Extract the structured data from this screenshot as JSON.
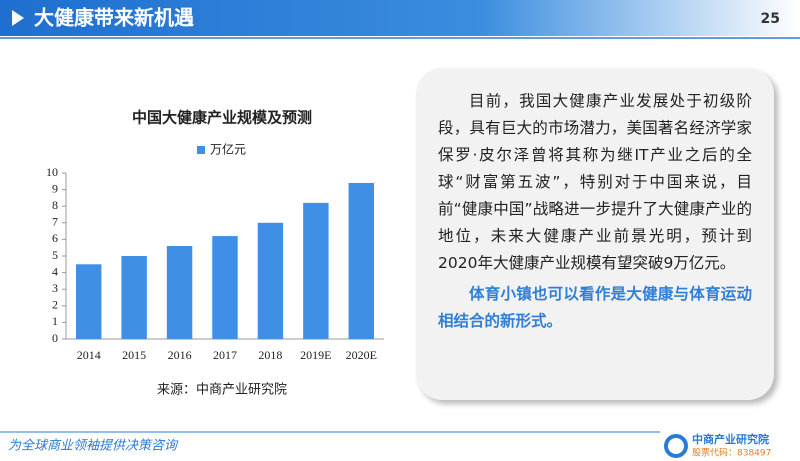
{
  "header": {
    "title": "大健康带来新机遇",
    "page": 25
  },
  "chart_data": {
    "type": "bar",
    "title": "中国大健康产业规模及预测",
    "categories": [
      "2014",
      "2015",
      "2016",
      "2017",
      "2018",
      "2019E",
      "2020E"
    ],
    "series": [
      {
        "name": "万亿元",
        "color": "#3f8fe6",
        "values": [
          4.5,
          5.0,
          5.6,
          6.2,
          7.0,
          8.2,
          9.4
        ]
      }
    ],
    "ylim": [
      0,
      10
    ],
    "yticks": [
      0,
      1,
      2,
      3,
      4,
      5,
      6,
      7,
      8,
      9,
      10
    ],
    "grid": false,
    "legend": "top"
  },
  "source": "来源：中商产业研究院",
  "panel": {
    "paragraphs": [
      "目前，我国大健康产业发展处于初级阶段，具有巨大的市场潜力，美国著名经济学家保罗·皮尔泽曾将其称为继IT产业之后的全球“财富第五波”，特别对于中国来说，目前“健康中国”战略进一步提升了大健康产业的地位，未来大健康产业前景光明，预计到2020年大健康产业规模有望突破9万亿元。",
      "体育小镇也可以看作是大健康与体育运动相结合的新形式。"
    ]
  },
  "footer": {
    "slogan": "为全球商业领袖提供决策咨询",
    "brand": "中商产业研究院",
    "stock": "股票代码：838497"
  }
}
